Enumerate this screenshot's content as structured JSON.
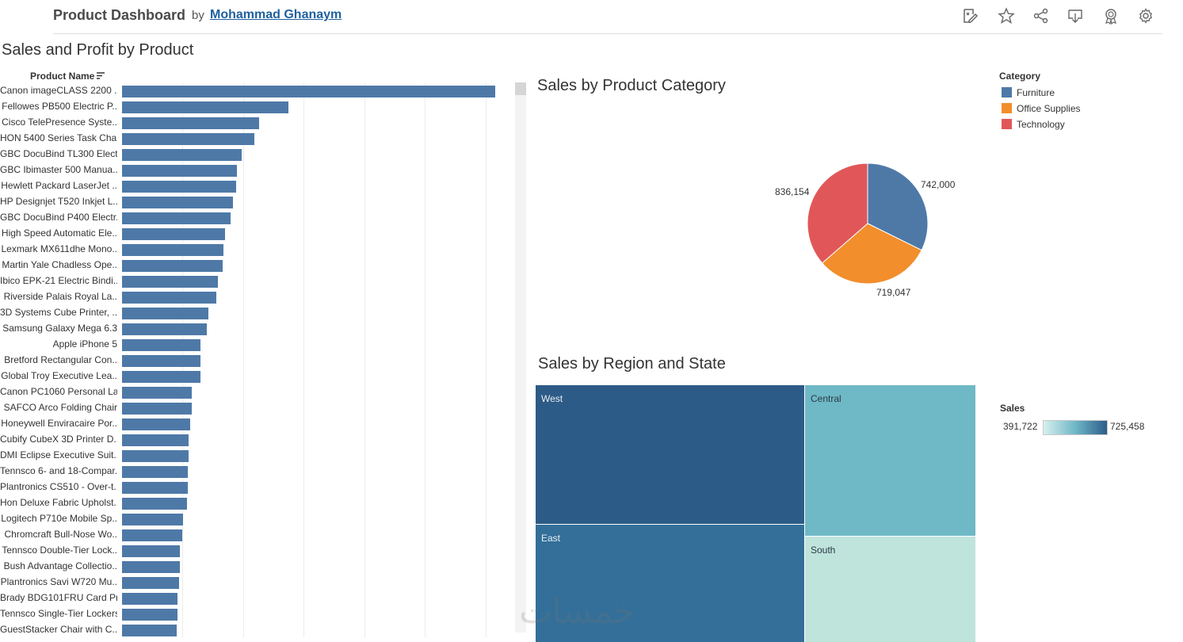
{
  "header": {
    "title": "Product Dashboard",
    "by": "by",
    "author": "Mohammad Ghanaym",
    "icons": [
      "edit-icon",
      "star-icon",
      "share-icon",
      "download-icon",
      "badge-icon",
      "gear-icon"
    ]
  },
  "bar_chart": {
    "title": "Sales and Profit by Product",
    "field_header": "Product Name",
    "bar_color": "#4e79a7"
  },
  "pie_chart": {
    "title": "Sales by Product Category",
    "legend_title": "Category",
    "labels": {
      "furniture": "742,000",
      "office_supplies": "719,047",
      "technology": "836,154"
    }
  },
  "treemap": {
    "title": "Sales by Region and State",
    "regions": {
      "west": "West",
      "central": "Central",
      "east": "East",
      "south": "South"
    },
    "legend_title": "Sales",
    "legend_min": "391,722",
    "legend_max": "725,458"
  },
  "watermark": "خمسات",
  "chart_data": [
    {
      "type": "bar",
      "title": "Sales and Profit by Product",
      "xlabel": "",
      "ylabel": "Product Name",
      "categories": [
        "Canon imageCLASS 2200 ..",
        "Fellowes PB500 Electric P..",
        "Cisco TelePresence Syste..",
        "HON 5400 Series Task Cha..",
        "GBC DocuBind TL300 Elect..",
        "GBC Ibimaster 500 Manua..",
        "Hewlett Packard LaserJet ..",
        "HP Designjet T520 Inkjet L..",
        "GBC DocuBind P400 Electr..",
        "High Speed Automatic Ele..",
        "Lexmark MX611dhe Mono..",
        "Martin Yale Chadless Ope..",
        "Ibico EPK-21 Electric Bindi..",
        "Riverside Palais Royal La..",
        "3D Systems Cube Printer, ..",
        "Samsung Galaxy Mega 6.3",
        "Apple iPhone 5",
        "Bretford Rectangular Con..",
        "Global Troy Executive Lea..",
        "Canon PC1060 Personal La..",
        "SAFCO Arco Folding Chair",
        "Honeywell Enviracaire Por..",
        "Cubify CubeX 3D Printer D..",
        "DMI Eclipse Executive Suit..",
        "Tennsco 6- and 18-Compar..",
        "Plantronics CS510 - Over-t..",
        "Hon Deluxe Fabric Upholst..",
        "Logitech P710e Mobile Sp..",
        "Chromcraft Bull-Nose Wo..",
        "Tennsco Double-Tier Lock..",
        "Bush Advantage Collectio..",
        "Plantronics Savi W720 Mu..",
        "Brady BDG101FRU Card Pri..",
        "Tennsco Single-Tier Lockers",
        "GuestStacker Chair with C.."
      ],
      "values": [
        61600,
        27500,
        22600,
        21900,
        19800,
        19000,
        18800,
        18300,
        17900,
        17000,
        16700,
        16600,
        15800,
        15600,
        14300,
        14000,
        13000,
        13000,
        13000,
        11500,
        11500,
        11300,
        11000,
        11000,
        10900,
        10800,
        10700,
        10100,
        9900,
        9600,
        9500,
        9400,
        9200,
        9100,
        9000
      ],
      "xlim": [
        0,
        62000
      ],
      "grid_step": 10000
    },
    {
      "type": "pie",
      "title": "Sales by Product Category",
      "categories": [
        "Furniture",
        "Office Supplies",
        "Technology"
      ],
      "values": [
        742000,
        719047,
        836154
      ],
      "colors": [
        "#4e79a7",
        "#f28e2b",
        "#e15759"
      ],
      "legend": "top-right"
    },
    {
      "type": "treemap",
      "title": "Sales by Region and State",
      "categories": [
        "West",
        "East",
        "Central",
        "South"
      ],
      "values": [
        725458,
        678781,
        501240,
        391722
      ],
      "colors": [
        "#2d5b87",
        "#336f99",
        "#6fb8c6",
        "#bfe4dc"
      ],
      "legend": "right"
    }
  ]
}
